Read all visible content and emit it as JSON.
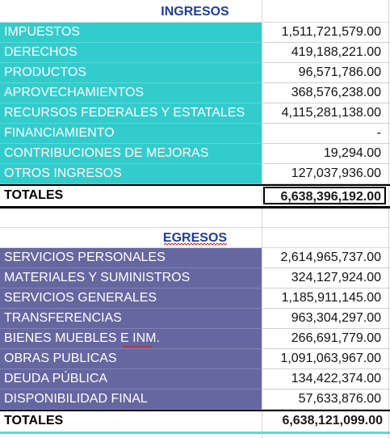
{
  "colors": {
    "ingresos_fill": "#33CCCC",
    "egresos_fill": "#6666A0",
    "header_text": "#1F3D99",
    "spell_underline": "#D62828"
  },
  "ingresos": {
    "title": "INGRESOS",
    "rows": [
      {
        "label": "IMPUESTOS",
        "value": "1,511,721,579.00"
      },
      {
        "label": "DERECHOS",
        "value": "419,188,221.00"
      },
      {
        "label": "PRODUCTOS",
        "value": "96,571,786.00"
      },
      {
        "label": "APROVECHAMIENTOS",
        "value": "368,576,238.00"
      },
      {
        "label": "RECURSOS FEDERALES Y ESTATALES",
        "value": "4,115,281,138.00"
      },
      {
        "label": "FINANCIAMIENTO",
        "value": "-"
      },
      {
        "label": "CONTRIBUCIONES DE MEJORAS",
        "value": "19,294.00"
      },
      {
        "label": "OTROS INGRESOS",
        "value": "127,037,936.00"
      }
    ],
    "total_label": "TOTALES",
    "total_value": "6,638,396,192.00"
  },
  "egresos": {
    "title": "EGRESOS",
    "rows": [
      {
        "label": "SERVICIOS PERSONALES",
        "value": "2,614,965,737.00"
      },
      {
        "label": "MATERIALES Y SUMINISTROS",
        "value": "324,127,924.00"
      },
      {
        "label": "SERVICIOS GENERALES",
        "value": "1,185,911,145.00"
      },
      {
        "label": "TRANSFERENCIAS",
        "value": "963,304,297.00"
      },
      {
        "label": "BIENES MUEBLES E INM.",
        "value": "266,691,779.00"
      },
      {
        "label": "OBRAS PUBLICAS",
        "value": "1,091,063,967.00"
      },
      {
        "label": "DEUDA PÚBLICA",
        "value": "134,422,374.00"
      },
      {
        "label": "DISPONIBILIDAD FINAL",
        "value": "57,633,876.00"
      }
    ],
    "total_label": "TOTALES",
    "total_value": "6,638,121,099.00"
  }
}
